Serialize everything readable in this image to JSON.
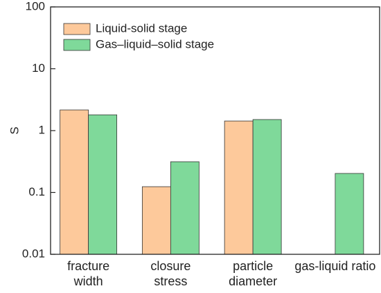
{
  "chart_data": {
    "type": "bar",
    "y_label": "S",
    "log_scale": true,
    "categories": [
      "fracture\nwidth",
      "closure\nstress",
      "particle\ndiameter",
      "gas-liquid ratio"
    ],
    "series": [
      {
        "name": "Liquid-solid stage",
        "color": "#fdc99b",
        "values": [
          2.16,
          0.124,
          1.43,
          null
        ]
      },
      {
        "name": "Gas–liquid–solid stage",
        "color": "#7fd99a",
        "values": [
          1.8,
          0.314,
          1.51,
          0.203
        ]
      }
    ],
    "ylim": [
      0.01,
      100
    ],
    "yticks": [
      0.01,
      0.1,
      1,
      10,
      100
    ],
    "legend": "upper-left"
  }
}
